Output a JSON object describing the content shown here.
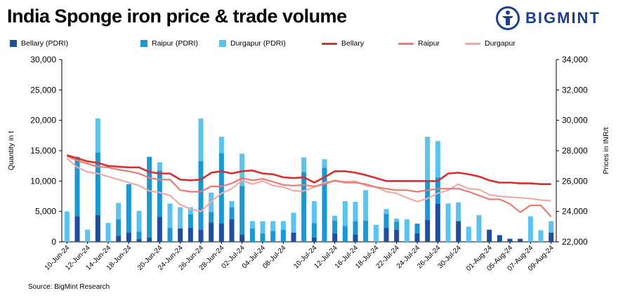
{
  "header": {
    "title": "India Sponge iron price & trade volume",
    "brand_name": "BIGMINT"
  },
  "legend": [
    {
      "label": "Bellary (PDRI)",
      "kind": "bar",
      "color": "#1f4e9e"
    },
    {
      "label": "Raipur (PDRI)",
      "kind": "bar",
      "color": "#1b97d4"
    },
    {
      "label": "Durgapur (PDRI)",
      "kind": "bar",
      "color": "#5bc4ee"
    },
    {
      "label": "Bellary",
      "kind": "line",
      "color": "#d62f2f"
    },
    {
      "label": "Raipur",
      "kind": "line",
      "color": "#e87a72"
    },
    {
      "label": "Durgapur",
      "kind": "line",
      "color": "#f1aaa3"
    }
  ],
  "source": "Source: BigMint Research",
  "chart_data": {
    "type": "bar",
    "title": "India Sponge iron price & trade volume",
    "ylabel": "Quantity in t",
    "y2label": "Prices in INR/t",
    "ylim": [
      0,
      30000
    ],
    "y2lim": [
      22000,
      34000
    ],
    "yticks": [
      "0",
      "5,000",
      "10,000",
      "15,000",
      "20,000",
      "25,000",
      "30,000"
    ],
    "y2ticks": [
      "22,000",
      "24,000",
      "26,000",
      "28,000",
      "30,000",
      "32,000",
      "34,000"
    ],
    "xticks": [
      "10-Jun-24",
      "12-Jun-24",
      "14-Jun-24",
      "18-Jun-24",
      "20-Jun-24",
      "24-Jun-24",
      "26-Jun-24",
      "28-Jun-24",
      "02-Jul-24",
      "04-Jul-24",
      "08-Jul-24",
      "10-Jul-24",
      "12-Jul-24",
      "16-Jul-24",
      "18-Jul-24",
      "22-Jul-24",
      "24-Jul-24",
      "26-Jul-24",
      "30-Jul-24",
      "01-Aug-24",
      "05-Aug-24",
      "07-Aug-24",
      "09-Aug-24"
    ],
    "grid": false,
    "legend_position": "top",
    "stacked": true,
    "bar_series": [
      {
        "name": "Bellary (PDRI)",
        "color": "#1f4e9e",
        "values": [
          0,
          4200,
          0,
          4400,
          0,
          1000,
          1500,
          500,
          700,
          4100,
          0,
          2200,
          2300,
          2000,
          3200,
          3000,
          3700,
          1200,
          0,
          0,
          0,
          0,
          1500,
          0,
          700,
          0,
          1400,
          0,
          1200,
          0,
          0,
          2300,
          2000,
          0,
          1400,
          3600,
          6300,
          0,
          3400,
          0,
          0,
          2000,
          1100,
          500,
          500,
          0,
          0,
          1500
        ]
      },
      {
        "name": "Raipur (PDRI)",
        "color": "#1b97d4",
        "values": [
          0,
          9800,
          0,
          10300,
          0,
          2700,
          8000,
          1200,
          13300,
          7600,
          2300,
          0,
          2200,
          11300,
          1700,
          11600,
          2000,
          8000,
          2200,
          1400,
          1800,
          2000,
          0,
          11500,
          2400,
          12200,
          2100,
          2600,
          2200,
          3500,
          0,
          2300,
          1300,
          0,
          1600,
          6400,
          4300,
          0,
          0,
          0,
          0,
          0,
          0,
          0,
          0,
          0,
          0,
          0
        ]
      },
      {
        "name": "Durgapur (PDRI)",
        "color": "#5bc4ee",
        "values": [
          5000,
          0,
          2000,
          5600,
          3100,
          2700,
          0,
          3400,
          0,
          1400,
          4000,
          3500,
          1200,
          7000,
          3200,
          2700,
          1000,
          5300,
          1200,
          2000,
          1600,
          1400,
          3300,
          2400,
          3600,
          1400,
          800,
          4100,
          3200,
          5000,
          2800,
          800,
          500,
          3700,
          0,
          7300,
          6000,
          6300,
          3100,
          2500,
          4400,
          0,
          0,
          0,
          0,
          4200,
          1900,
          1900
        ]
      }
    ],
    "line_series": [
      {
        "name": "Bellary",
        "color": "#d62f2f",
        "values": [
          27700,
          27500,
          27300,
          27200,
          27000,
          26950,
          26900,
          26900,
          26600,
          26500,
          26500,
          26100,
          26050,
          26100,
          26550,
          26650,
          26500,
          26650,
          26700,
          26500,
          26450,
          26250,
          26200,
          26250,
          25900,
          26250,
          26650,
          26650,
          26550,
          26400,
          26200,
          26000,
          26000,
          26000,
          26000,
          26000,
          26000,
          26500,
          26550,
          26450,
          26300,
          26050,
          25900,
          25900,
          25850,
          25850,
          25800,
          25800
        ]
      },
      {
        "name": "Raipur",
        "color": "#e87a72",
        "values": [
          27650,
          27350,
          27150,
          26950,
          26900,
          26750,
          26650,
          26500,
          26200,
          26100,
          26100,
          25400,
          25300,
          25300,
          25650,
          25650,
          25850,
          26200,
          26050,
          26150,
          25950,
          25750,
          25700,
          25750,
          25650,
          25800,
          26050,
          25900,
          25900,
          25800,
          25600,
          25500,
          25400,
          25400,
          25300,
          25400,
          25500,
          25500,
          25500,
          25300,
          25050,
          24800,
          24800,
          24500,
          23950,
          24400,
          24400,
          23650
        ]
      },
      {
        "name": "Durgapur",
        "color": "#f1aaa3",
        "values": [
          27500,
          26900,
          26600,
          26500,
          26300,
          26100,
          25900,
          25700,
          25350,
          25250,
          25050,
          24450,
          24150,
          24000,
          24650,
          25200,
          25500,
          26050,
          25800,
          26000,
          25700,
          25600,
          25350,
          25350,
          25600,
          25900,
          26000,
          25950,
          26000,
          25700,
          25600,
          25300,
          25200,
          24900,
          24650,
          24850,
          25200,
          25400,
          25800,
          25500,
          25450,
          25100,
          25000,
          24950,
          24900,
          24850,
          24750,
          24700
        ]
      }
    ]
  }
}
